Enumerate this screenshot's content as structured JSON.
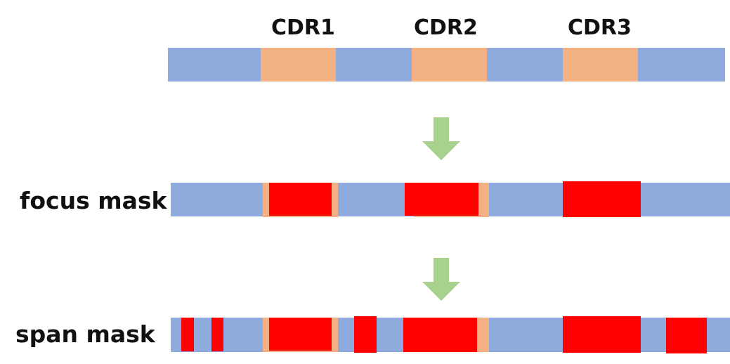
{
  "cdr_labels": [
    "CDR1",
    "CDR2",
    "CDR3"
  ],
  "row_labels": {
    "focus": "focus mask",
    "span": "span mask"
  },
  "colors": {
    "framework": "#8FAADC",
    "cdr": "#F4B183",
    "mask": "#FF0000",
    "arrow": "#A9D18E"
  }
}
